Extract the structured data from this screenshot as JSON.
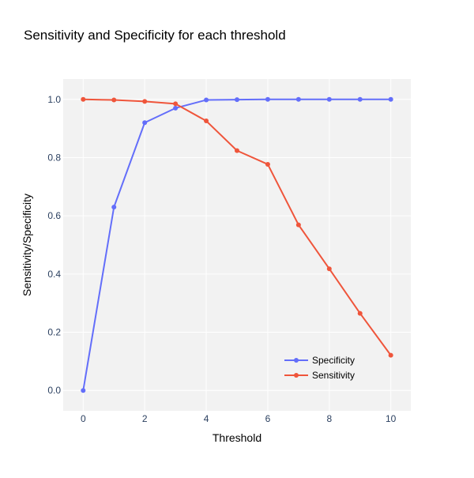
{
  "chart_data": {
    "type": "line",
    "title": "Sensitivity and Specificity for each threshold",
    "xlabel": "Threshold",
    "ylabel": "Sensitivity/Specificity",
    "xlim": [
      -0.65,
      10.65
    ],
    "ylim": [
      -0.07,
      1.07
    ],
    "x_ticks": [
      0,
      2,
      4,
      6,
      8,
      10
    ],
    "x_tick_labels": [
      "0",
      "2",
      "4",
      "6",
      "8",
      "10"
    ],
    "y_ticks": [
      0,
      0.2,
      0.4,
      0.6,
      0.8,
      1.0
    ],
    "y_tick_labels": [
      "0.0",
      "0.2",
      "0.4",
      "0.6",
      "0.8",
      "1.0"
    ],
    "grid": true,
    "legend_position": "bottom-right",
    "plot_background": "#f2f2f2",
    "grid_color": "#ffffff",
    "x": [
      0,
      1,
      2,
      3,
      4,
      5,
      6,
      7,
      8,
      9,
      10
    ],
    "series": [
      {
        "name": "Specificity",
        "color": "#636efa",
        "values": [
          0.0,
          0.63,
          0.92,
          0.97,
          0.998,
          0.999,
          1.0,
          1.0,
          1.0,
          1.0,
          1.0
        ]
      },
      {
        "name": "Sensitivity",
        "color": "#ef553b",
        "values": [
          1.0,
          0.998,
          0.993,
          0.985,
          0.926,
          0.824,
          0.777,
          0.569,
          0.418,
          0.265,
          0.121
        ]
      }
    ]
  }
}
